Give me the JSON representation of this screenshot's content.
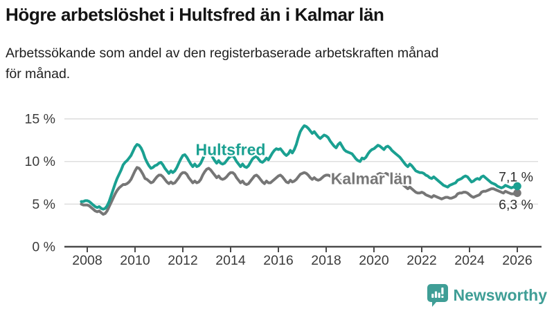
{
  "header": {
    "title": "Högre arbetslöshet i Hultsfred än i Kalmar län",
    "subtitle_line1": "Arbetssökande som andel av den registerbaserade arbetskraften månad",
    "subtitle_line2": "för månad."
  },
  "footer": {
    "brand": "Newsworthy",
    "brand_color": "#3f9e96",
    "logo_icon": "bar-chart-speech-bubble-icon"
  },
  "chart_data": {
    "type": "line",
    "title": "",
    "xlabel": "",
    "ylabel": "",
    "x_start_year": 2007.75,
    "x_step": "monthly",
    "x_end_year": 2026.0,
    "xlim": [
      2007.0,
      2027.0
    ],
    "ylim": [
      0,
      15
    ],
    "grid": true,
    "x_ticks": [
      2008,
      2010,
      2012,
      2014,
      2016,
      2018,
      2020,
      2022,
      2024,
      2026
    ],
    "y_ticks": [
      {
        "value": 0,
        "label": "0 %"
      },
      {
        "value": 5,
        "label": "5 %"
      },
      {
        "value": 10,
        "label": "10 %"
      },
      {
        "value": 15,
        "label": "15 %"
      }
    ],
    "series": [
      {
        "name": "Kalmar län",
        "color": "#767676",
        "end_label": "6,3 %",
        "end_value": 6.3,
        "label_at": {
          "year": 2019.9,
          "value": 8.0
        },
        "end_label_dy": 23,
        "values": [
          5.0,
          4.9,
          4.9,
          4.9,
          4.8,
          4.6,
          4.4,
          4.2,
          4.1,
          4.2,
          4.0,
          3.8,
          3.9,
          4.2,
          4.7,
          5.2,
          5.7,
          6.2,
          6.6,
          6.9,
          7.1,
          7.3,
          7.3,
          7.4,
          7.6,
          7.9,
          8.4,
          8.9,
          9.3,
          9.2,
          8.9,
          8.5,
          8.0,
          7.9,
          7.7,
          7.5,
          7.6,
          7.9,
          8.2,
          8.4,
          8.4,
          8.2,
          7.9,
          7.6,
          7.4,
          7.6,
          7.4,
          7.5,
          7.8,
          8.1,
          8.5,
          8.7,
          8.7,
          8.5,
          8.1,
          7.8,
          7.5,
          7.7,
          7.5,
          7.6,
          7.9,
          8.4,
          8.8,
          9.1,
          9.2,
          9.0,
          8.7,
          8.4,
          8.1,
          8.3,
          8.0,
          7.9,
          8.0,
          8.2,
          8.5,
          8.7,
          8.7,
          8.5,
          8.1,
          7.8,
          7.5,
          7.7,
          7.4,
          7.3,
          7.4,
          7.7,
          8.0,
          8.3,
          8.4,
          8.2,
          7.9,
          7.6,
          7.4,
          7.7,
          7.5,
          7.5,
          7.7,
          7.9,
          8.1,
          8.3,
          8.4,
          8.2,
          7.9,
          7.6,
          7.5,
          7.8,
          7.6,
          7.7,
          7.9,
          8.2,
          8.5,
          8.6,
          8.7,
          8.6,
          8.4,
          8.1,
          7.9,
          8.1,
          7.9,
          7.8,
          7.9,
          8.1,
          8.3,
          8.4,
          8.4,
          8.3,
          8.1,
          7.9,
          7.7,
          7.9,
          7.8,
          7.7,
          7.7,
          7.8,
          8.0,
          8.1,
          8.1,
          8.0,
          7.8,
          7.6,
          7.5,
          7.7,
          7.6,
          7.6,
          7.7,
          7.9,
          8.1,
          8.2,
          8.3,
          8.5,
          8.6,
          8.5,
          8.4,
          8.6,
          8.5,
          8.3,
          8.1,
          7.9,
          7.8,
          7.7,
          7.6,
          7.4,
          7.2,
          7.0,
          6.8,
          7.0,
          6.8,
          6.6,
          6.4,
          6.3,
          6.3,
          6.4,
          6.3,
          6.1,
          6.0,
          5.9,
          5.8,
          6.0,
          5.9,
          5.8,
          5.7,
          5.6,
          5.7,
          5.8,
          5.8,
          5.7,
          5.7,
          5.8,
          5.9,
          6.2,
          6.3,
          6.3,
          6.4,
          6.4,
          6.3,
          6.1,
          5.9,
          5.8,
          5.9,
          6.0,
          6.1,
          6.4,
          6.5,
          6.5,
          6.6,
          6.7,
          6.8,
          6.8,
          6.7,
          6.6,
          6.5,
          6.4,
          6.3,
          6.5,
          6.4,
          6.3,
          6.2,
          6.2,
          6.2,
          6.3
        ]
      },
      {
        "name": "Hultsfred",
        "color": "#1aa091",
        "end_label": "7,1 %",
        "end_value": 7.1,
        "label_at": {
          "year": 2014.0,
          "value": 11.4
        },
        "end_label_dy": -7,
        "values": [
          5.3,
          5.3,
          5.4,
          5.4,
          5.3,
          5.1,
          4.9,
          4.7,
          4.6,
          4.7,
          4.5,
          4.4,
          4.5,
          4.8,
          5.3,
          6.0,
          6.7,
          7.4,
          8.0,
          8.5,
          9.0,
          9.6,
          9.9,
          10.1,
          10.4,
          10.7,
          11.2,
          11.7,
          12.0,
          11.9,
          11.6,
          11.1,
          10.4,
          9.9,
          9.5,
          9.2,
          9.3,
          9.5,
          9.6,
          9.8,
          9.9,
          9.6,
          9.2,
          8.9,
          8.6,
          8.9,
          8.7,
          8.9,
          9.3,
          9.8,
          10.3,
          10.7,
          10.8,
          10.5,
          10.1,
          9.7,
          9.4,
          9.7,
          9.4,
          9.5,
          9.8,
          10.3,
          10.8,
          11.1,
          11.2,
          10.9,
          10.5,
          10.1,
          9.8,
          10.1,
          9.8,
          9.7,
          9.8,
          10.1,
          10.4,
          10.6,
          10.7,
          10.4,
          10.0,
          9.7,
          9.4,
          9.7,
          9.4,
          9.3,
          9.5,
          9.9,
          10.3,
          10.5,
          10.6,
          10.3,
          10.0,
          9.9,
          10.1,
          10.4,
          10.2,
          10.6,
          11.0,
          11.3,
          11.5,
          11.4,
          11.5,
          11.2,
          10.9,
          10.7,
          10.9,
          11.3,
          11.0,
          11.4,
          12.0,
          12.8,
          13.5,
          13.9,
          14.2,
          14.1,
          13.9,
          13.6,
          13.3,
          13.5,
          13.2,
          12.9,
          12.7,
          12.9,
          13.1,
          13.0,
          12.8,
          12.4,
          12.1,
          11.8,
          11.6,
          12.0,
          12.2,
          11.8,
          11.4,
          11.2,
          11.1,
          11.0,
          10.9,
          10.6,
          10.3,
          10.1,
          10.0,
          10.4,
          10.3,
          10.5,
          10.9,
          11.2,
          11.4,
          11.5,
          11.7,
          11.9,
          11.8,
          11.6,
          11.4,
          11.7,
          11.8,
          11.6,
          11.3,
          11.1,
          10.9,
          10.7,
          10.5,
          10.2,
          9.9,
          9.6,
          9.4,
          9.7,
          9.5,
          9.2,
          8.9,
          8.8,
          8.7,
          8.7,
          8.6,
          8.4,
          8.3,
          8.1,
          8.0,
          8.2,
          8.0,
          7.8,
          7.6,
          7.4,
          7.2,
          7.1,
          7.0,
          7.2,
          7.3,
          7.4,
          7.5,
          7.8,
          7.9,
          8.0,
          8.2,
          8.3,
          8.2,
          7.9,
          7.6,
          7.7,
          7.9,
          8.0,
          7.9,
          8.2,
          8.3,
          8.1,
          7.9,
          7.7,
          7.5,
          7.4,
          7.3,
          7.1,
          7.0,
          6.9,
          7.0,
          7.2,
          7.1,
          7.0,
          6.9,
          7.0,
          7.0,
          7.1
        ]
      }
    ],
    "legend_position": "inline-labels",
    "colors": {
      "grid": "#dcdcdc",
      "axis": "#4a4a4a",
      "tick_text": "#3b3b3b",
      "end_label_text": "#2e2e2e"
    }
  }
}
